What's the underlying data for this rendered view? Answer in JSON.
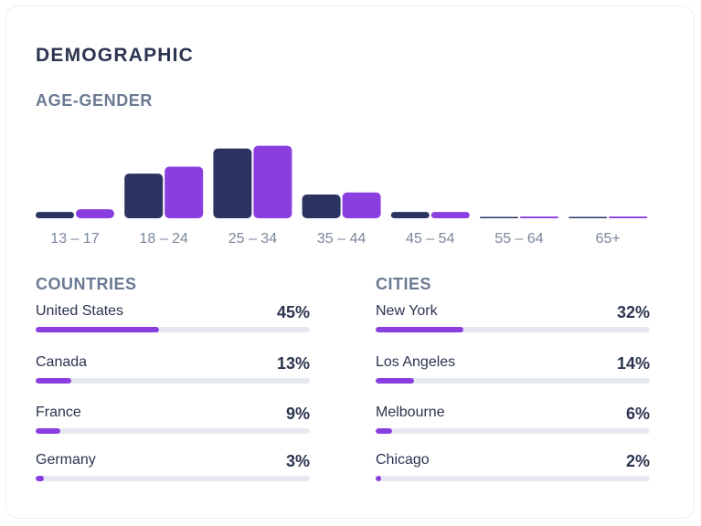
{
  "title": "DEMOGRAPHIC",
  "chart_data": {
    "type": "bar",
    "subtitle": "AGE-GENDER",
    "categories": [
      "13 – 17",
      "18 – 24",
      "25 – 34",
      "35 – 44",
      "45 – 54",
      "55 – 64",
      "65+"
    ],
    "series": [
      {
        "values": [
          4.5,
          32,
          50,
          17,
          4.5,
          0.4,
          0.4
        ],
        "color": "#2b3460"
      },
      {
        "values": [
          6.5,
          37,
          52,
          18.5,
          4.5,
          1.2,
          1.2
        ],
        "color": "#8a3ee0"
      }
    ],
    "ylim": [
      0,
      55
    ],
    "grid": false,
    "legend": "none"
  },
  "countries": {
    "heading": "COUNTRIES",
    "items": [
      {
        "label": "United States",
        "percent_text": "45%",
        "value": 45
      },
      {
        "label": "Canada",
        "percent_text": "13%",
        "value": 13
      },
      {
        "label": "France",
        "percent_text": "9%",
        "value": 9
      },
      {
        "label": "Germany",
        "percent_text": "3%",
        "value": 3
      }
    ]
  },
  "cities": {
    "heading": "CITIES",
    "items": [
      {
        "label": "New York",
        "percent_text": "32%",
        "value": 32
      },
      {
        "label": "Los Angeles",
        "percent_text": "14%",
        "value": 14
      },
      {
        "label": "Melbourne",
        "percent_text": "6%",
        "value": 6
      },
      {
        "label": "Chicago",
        "percent_text": "2%",
        "value": 2
      }
    ]
  },
  "colors": {
    "dark_navy": "#2b3460",
    "purple": "#8a3ee0",
    "track": "#e6e9f0",
    "heading": "#2b3450",
    "muted": "#6b7a93"
  }
}
